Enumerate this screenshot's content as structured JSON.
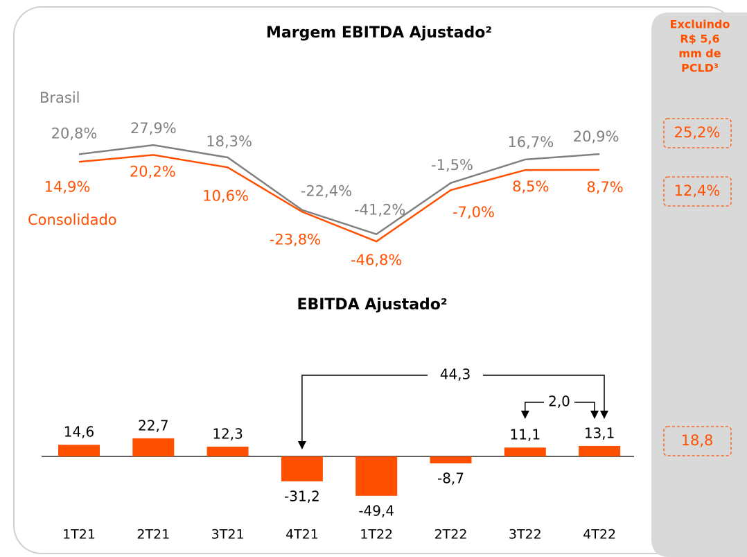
{
  "chart_data": [
    {
      "type": "line",
      "title": "Margem EBITDA Ajustado²",
      "categories": [
        "1T21",
        "2T21",
        "3T21",
        "4T21",
        "1T22",
        "2T22",
        "3T22",
        "4T22"
      ],
      "series": [
        {
          "name": "Brasil",
          "color": "#808080",
          "values": [
            20.8,
            27.9,
            18.3,
            -22.4,
            -41.2,
            -1.5,
            16.7,
            20.9
          ],
          "value_labels": [
            "20,8%",
            "27,9%",
            "18,3%",
            "-22,4%",
            "-41,2%",
            "-1,5%",
            "16,7%",
            "20,9%"
          ]
        },
        {
          "name": "Consolidado",
          "color": "#ff5000",
          "values": [
            14.9,
            20.2,
            10.6,
            -23.8,
            -46.8,
            -7.0,
            8.5,
            8.7
          ],
          "value_labels": [
            "14,9%",
            "20,2%",
            "10,6%",
            "-23,8%",
            "-46,8%",
            "-7,0%",
            "8,5%",
            "8,7%"
          ]
        }
      ]
    },
    {
      "type": "bar",
      "title": "EBITDA Ajustado²",
      "categories": [
        "1T21",
        "2T21",
        "3T21",
        "4T21",
        "1T22",
        "2T22",
        "3T22",
        "4T22"
      ],
      "values": [
        14.6,
        22.7,
        12.3,
        -31.2,
        -49.4,
        -8.7,
        11.1,
        13.1
      ],
      "value_labels": [
        "14,6",
        "22,7",
        "12,3",
        "-31,2",
        "-49,4",
        "-8,7",
        "11,1",
        "13,1"
      ],
      "color": "#ff5000",
      "annotations": [
        {
          "value": 44.3,
          "label": "44,3"
        },
        {
          "value": 2.0,
          "label": "2,0"
        }
      ]
    }
  ],
  "side_panel": {
    "title": [
      "Excluindo",
      "R$ 5,6",
      "mm de",
      "PCLD³"
    ],
    "items": [
      {
        "value": 25.2,
        "label": "25,2%"
      },
      {
        "value": 12.4,
        "label": "12,4%"
      },
      {
        "value": 18.8,
        "label": "18,8"
      }
    ]
  }
}
